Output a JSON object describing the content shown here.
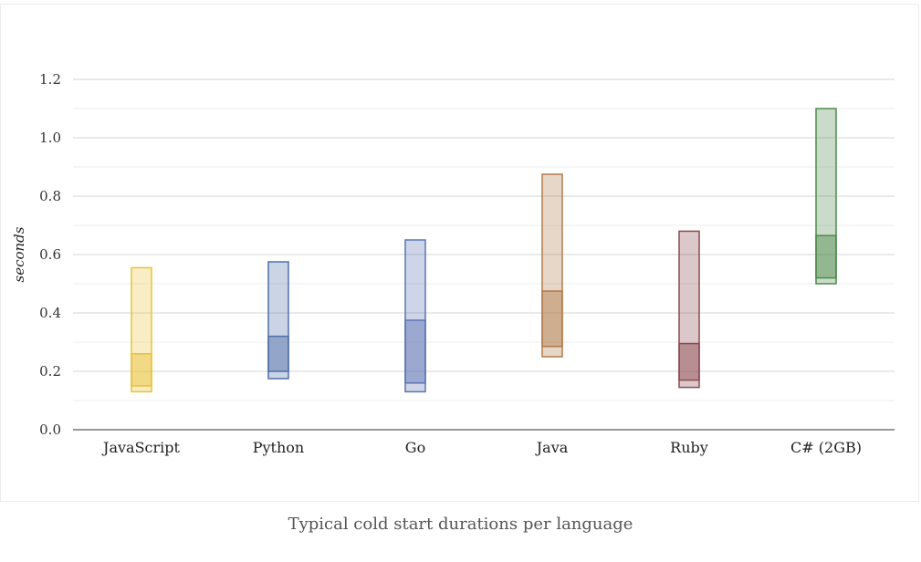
{
  "chart_data": {
    "type": "floating-range-bar",
    "caption": "Typical cold start durations per language",
    "ylabel": "seconds",
    "ylim": [
      0,
      1.2
    ],
    "yticks": [
      "0.0",
      "0.2",
      "0.4",
      "0.6",
      "0.8",
      "1.0",
      "1.2"
    ],
    "grid": true,
    "categories": [
      "JavaScript",
      "Python",
      "Go",
      "Java",
      "Ruby",
      "C# (2GB)"
    ],
    "bars": [
      {
        "category": "JavaScript",
        "min": 0.13,
        "max": 0.555,
        "inner_low": 0.15,
        "inner_high": 0.26,
        "color": "#e9c23a"
      },
      {
        "category": "Python",
        "min": 0.175,
        "max": 0.575,
        "inner_low": 0.2,
        "inner_high": 0.32,
        "color": "#4f6fa8"
      },
      {
        "category": "Go",
        "min": 0.13,
        "max": 0.65,
        "inner_low": 0.16,
        "inner_high": 0.375,
        "color": "#5d73b4"
      },
      {
        "category": "Java",
        "min": 0.25,
        "max": 0.875,
        "inner_low": 0.285,
        "inner_high": 0.475,
        "color": "#b07c4a"
      },
      {
        "category": "Ruby",
        "min": 0.145,
        "max": 0.68,
        "inner_low": 0.17,
        "inner_high": 0.295,
        "color": "#8a4a50"
      },
      {
        "category": "C# (2GB)",
        "min": 0.5,
        "max": 1.1,
        "inner_low": 0.52,
        "inner_high": 0.665,
        "color": "#4f8a4c"
      }
    ]
  }
}
